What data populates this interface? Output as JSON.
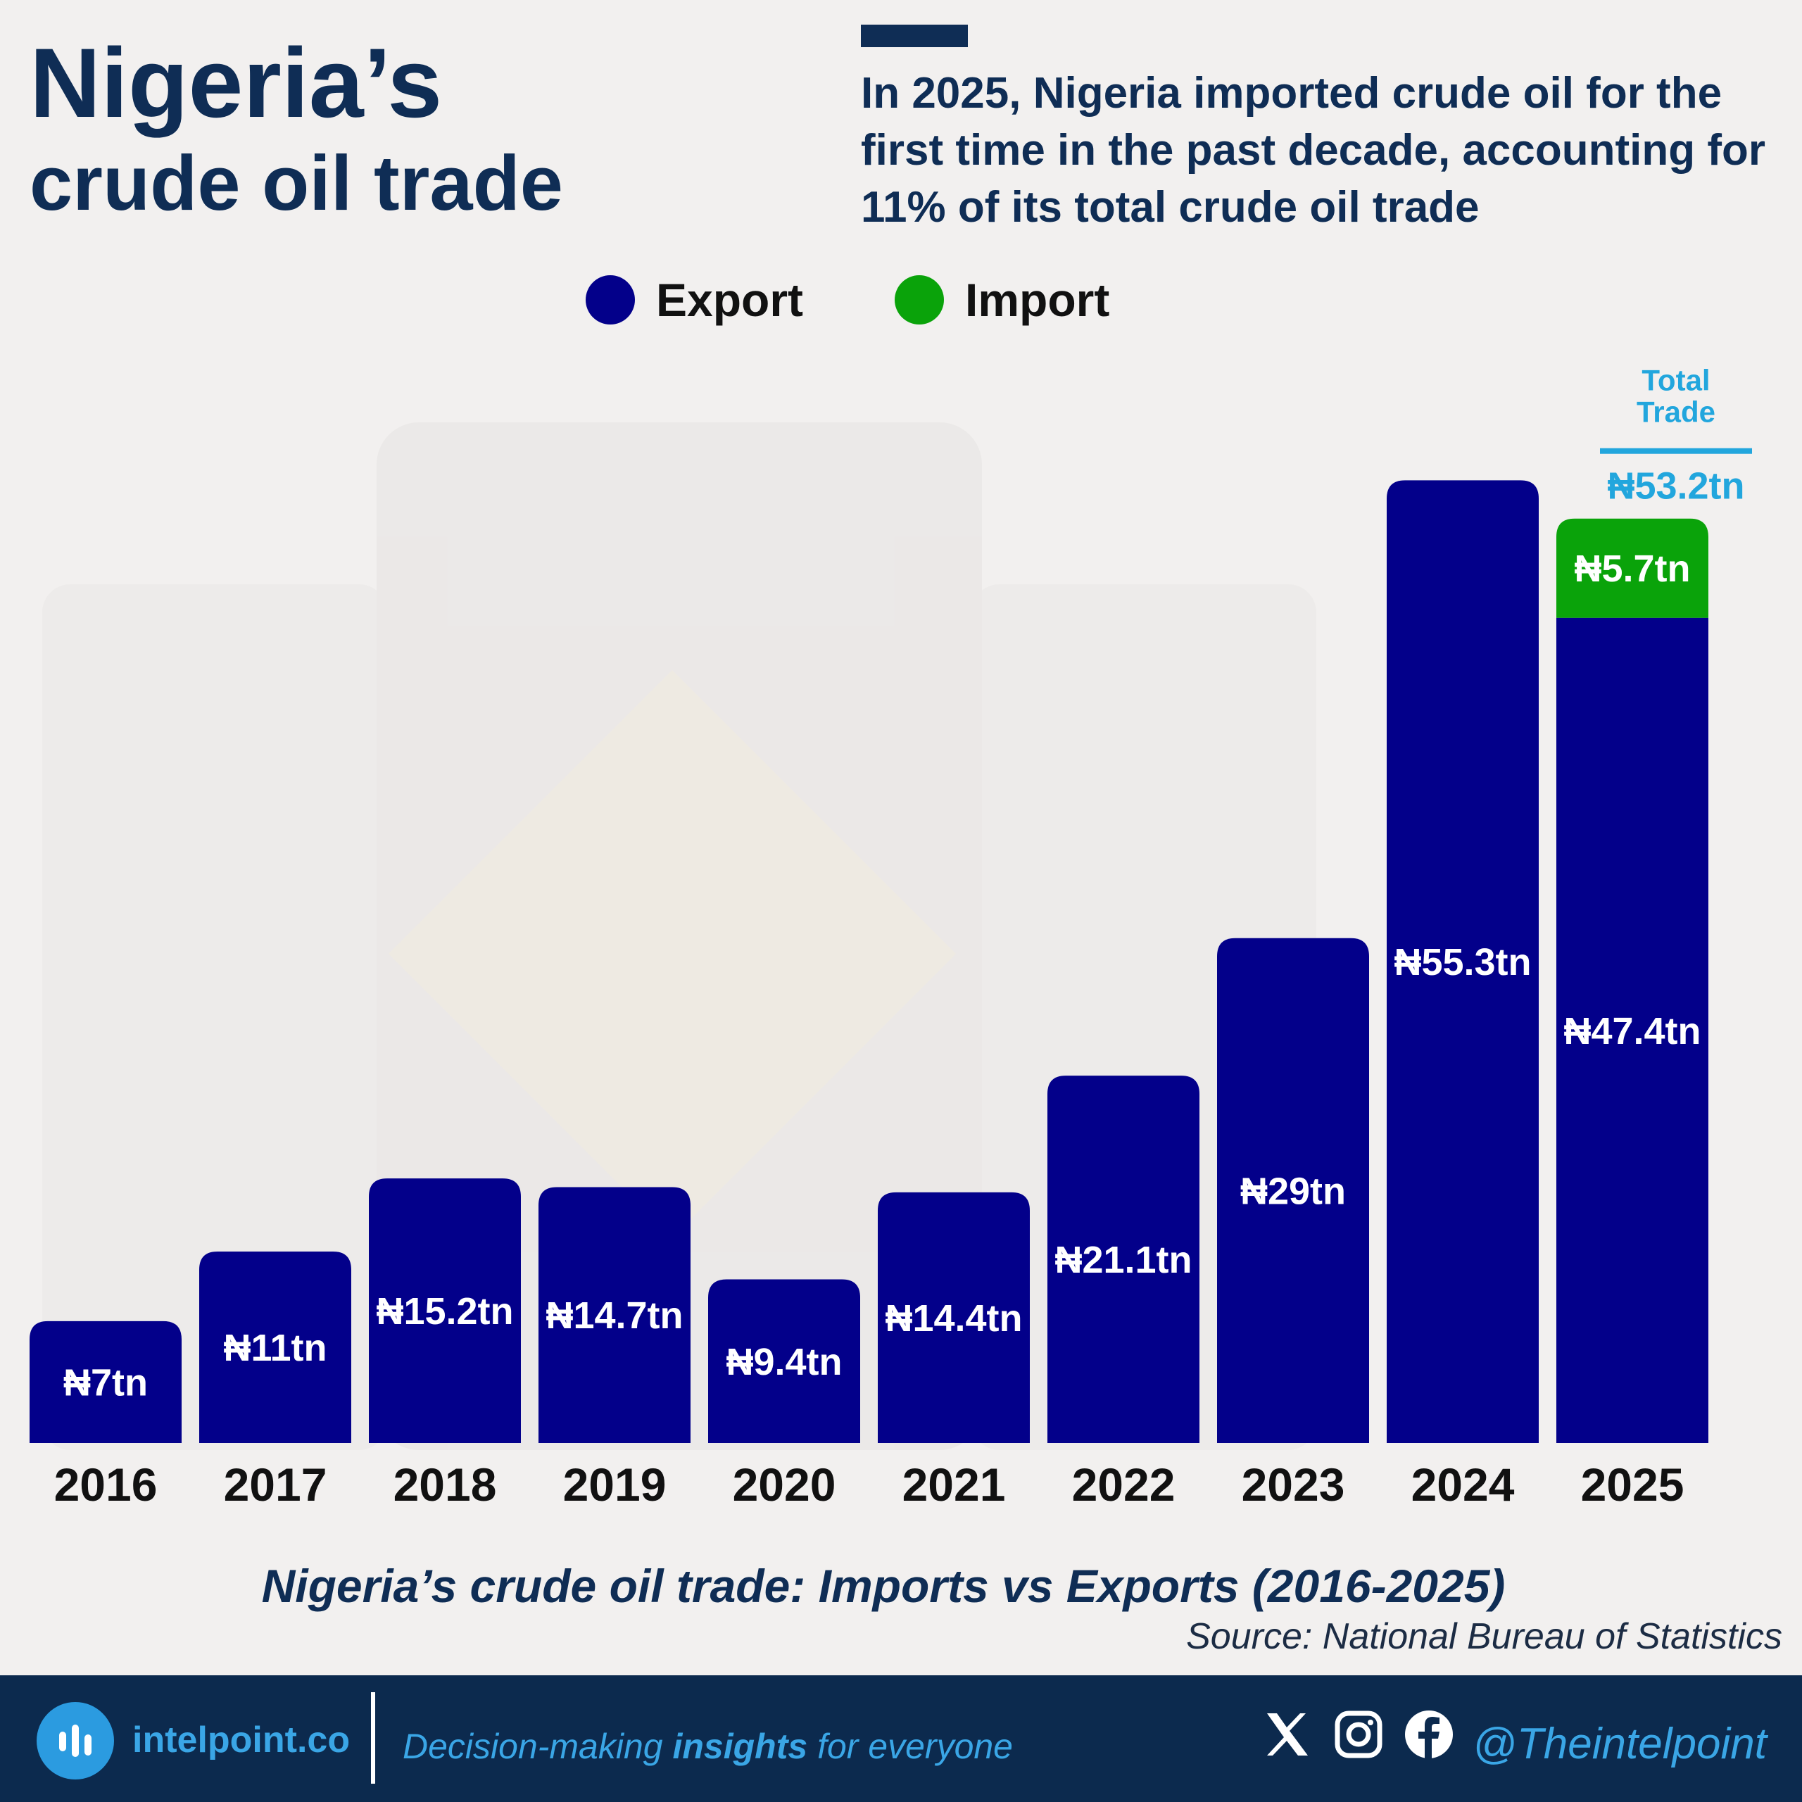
{
  "header": {
    "title_line1": "Nigeria’s",
    "title_line2": "crude oil trade",
    "summary": "In 2025, Nigeria imported crude oil for the first time in the past decade, accounting for 11% of its total crude oil trade"
  },
  "legend": {
    "export_label": "Export",
    "import_label": "Import"
  },
  "colors": {
    "export": "#03008a",
    "import": "#0aa30a",
    "total": "#22a6dd",
    "navy": "#0f2d55",
    "footer_bg": "#0c2a4e"
  },
  "chart_data": {
    "type": "bar",
    "stacked": true,
    "categories": [
      "2016",
      "2017",
      "2018",
      "2019",
      "2020",
      "2021",
      "2022",
      "2023",
      "2024",
      "2025"
    ],
    "series": [
      {
        "name": "Export",
        "values": [
          7,
          11,
          15.2,
          14.7,
          9.4,
          14.4,
          21.1,
          29,
          55.3,
          47.4
        ],
        "labels": [
          "₦7tn",
          "₦11tn",
          "₦15.2tn",
          "₦14.7tn",
          "₦9.4tn",
          "₦14.4tn",
          "₦21.1tn",
          "₦29tn",
          "₦55.3tn",
          "₦47.4tn"
        ]
      },
      {
        "name": "Import",
        "values": [
          0,
          0,
          0,
          0,
          0,
          0,
          0,
          0,
          0,
          5.7
        ],
        "labels": [
          "",
          "",
          "",
          "",
          "",
          "",
          "",
          "",
          "",
          "₦5.7tn"
        ]
      }
    ],
    "annotations": {
      "total_trade_heading_line1": "Total",
      "total_trade_heading_line2": "Trade",
      "total_trade_value": "₦53.2tn",
      "total_trade_category": "2025"
    },
    "ylim": [
      0,
      56
    ],
    "grid": false,
    "legend_position": "top-center",
    "caption": "Nigeria’s crude oil trade: Imports vs Exports (2016-2025)"
  },
  "source": "Source: National Bureau of Statistics",
  "footer": {
    "brand": "intelpoint.co",
    "tagline_pre": "Decision-making ",
    "tagline_bold": "insights",
    "tagline_post": " for everyone",
    "social_icons": [
      "x-icon",
      "instagram-icon",
      "facebook-icon"
    ],
    "handle": "@Theintelpoint"
  }
}
